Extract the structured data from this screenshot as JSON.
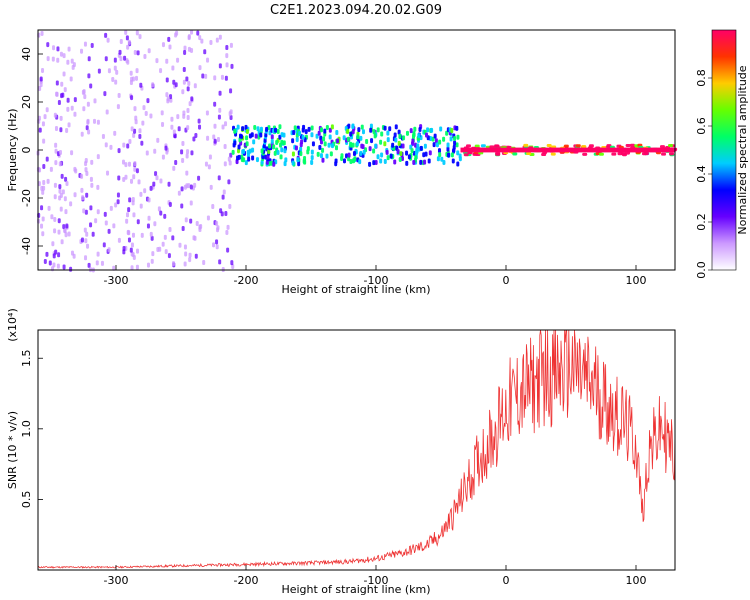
{
  "title": "C2E1.2023.094.20.02.G09",
  "chart_data": [
    {
      "type": "heatmap",
      "title": "",
      "xlabel": "Height of straight line (km)",
      "ylabel": "Frequency (Hz)",
      "xlim": [
        -360,
        130
      ],
      "ylim": [
        -50,
        50
      ],
      "xticks": [
        -300,
        -200,
        -100,
        0,
        100
      ],
      "yticks": [
        -40,
        -20,
        0,
        20,
        40
      ],
      "colorbar": {
        "label": "Normalized spectral amplitude",
        "range": [
          0,
          1
        ],
        "ticks": [
          "0.0",
          "0.2",
          "0.4",
          "0.6",
          "0.8"
        ],
        "colors": [
          "#ffffff",
          "#cc99ff",
          "#6600ff",
          "#0000ff",
          "#00ccff",
          "#00ff66",
          "#66ff00",
          "#ffcc00",
          "#ff3300",
          "#ff0066"
        ]
      },
      "features": [
        {
          "x_range": [
            -360,
            -210
          ],
          "freq_spread": 50,
          "amplitude": 0.15,
          "description": "diffuse noise"
        },
        {
          "x_range": [
            -210,
            -35
          ],
          "freq_center": 2,
          "freq_spread": 8,
          "amplitude": 0.45
        },
        {
          "x_range": [
            -35,
            130
          ],
          "freq_center": 0,
          "freq_spread": 2,
          "amplitude": 0.95
        }
      ]
    },
    {
      "type": "line",
      "title": "",
      "xlabel": "Height of straight line (km)",
      "ylabel": "SNR (10 * v/v)",
      "y_multiplier": "(x10⁴)",
      "xlim": [
        -360,
        130
      ],
      "ylim": [
        0,
        1.7
      ],
      "xticks": [
        -300,
        -200,
        -100,
        0,
        100
      ],
      "yticks": [
        0.5,
        1.0,
        1.5
      ],
      "color": "#ee3333",
      "series": [
        {
          "x": [
            -360,
            -300,
            -250,
            -200,
            -150,
            -120,
            -100,
            -80,
            -60,
            -50,
            -40,
            -30,
            -20,
            -10,
            0,
            10,
            20,
            30,
            40,
            50,
            60,
            70,
            80,
            90,
            100,
            105,
            110,
            120,
            130
          ],
          "y": [
            0.02,
            0.02,
            0.03,
            0.04,
            0.05,
            0.06,
            0.08,
            0.12,
            0.18,
            0.25,
            0.4,
            0.6,
            0.8,
            0.95,
            1.15,
            1.25,
            1.3,
            1.4,
            1.38,
            1.45,
            1.35,
            1.28,
            1.15,
            1.05,
            0.9,
            0.4,
            0.85,
            1.0,
            0.8
          ]
        }
      ]
    }
  ]
}
